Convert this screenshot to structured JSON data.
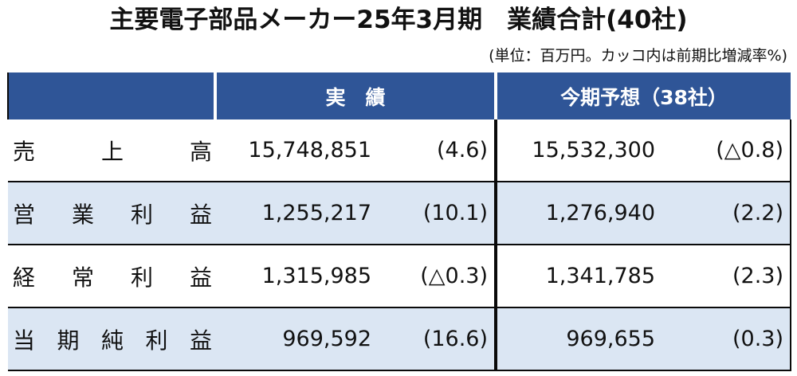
{
  "title": "主要電子部品メーカー25年3月期　業績合計(40社)",
  "unit_note": "(単位：百万円。カッコ内は前期比増減率%)",
  "header": {
    "blank": "",
    "actual": "実　績",
    "forecast": "今期予想（38社）"
  },
  "rows": [
    {
      "label": [
        "売",
        "上",
        "高"
      ],
      "actual": "15,748,851",
      "actual_pct": "(4.6)",
      "forecast": "15,532,300",
      "forecast_pct": "(△0.8)"
    },
    {
      "label": [
        "営",
        "業",
        "利",
        "益"
      ],
      "actual": "1,255,217",
      "actual_pct": "(10.1)",
      "forecast": "1,276,940",
      "forecast_pct": "(2.2)"
    },
    {
      "label": [
        "経",
        "常",
        "利",
        "益"
      ],
      "actual": "1,315,985",
      "actual_pct": "(△0.3)",
      "forecast": "1,341,785",
      "forecast_pct": "(2.3)"
    },
    {
      "label": [
        "当",
        "期",
        "純",
        "利",
        "益"
      ],
      "actual": "969,592",
      "actual_pct": "(16.6)",
      "forecast": "969,655",
      "forecast_pct": "(0.3)"
    }
  ],
  "colors": {
    "header_bg": "#2f5597",
    "stripe_bg": "#dbe6f3",
    "border": "#0a0a0a"
  }
}
